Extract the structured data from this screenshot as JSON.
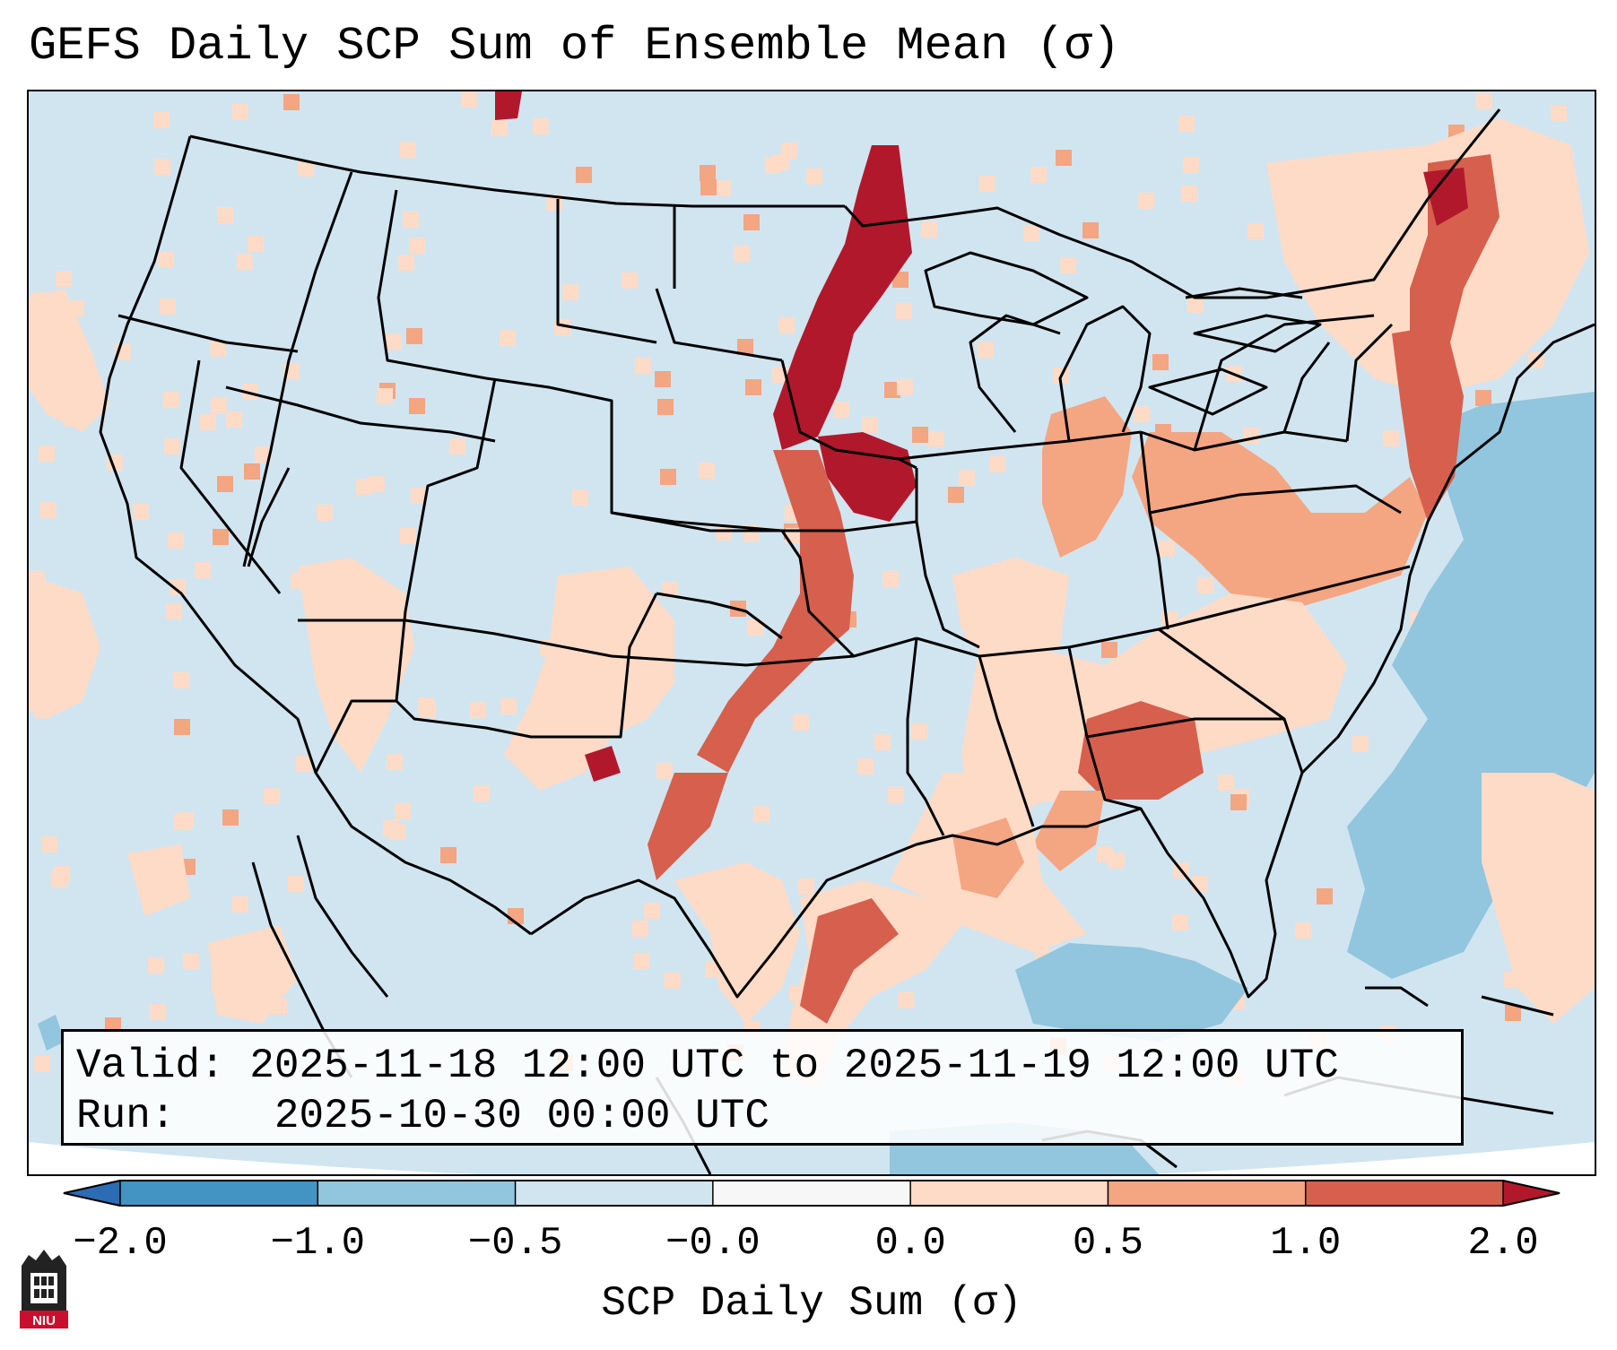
{
  "title": "GEFS Daily SCP Sum of Ensemble Mean (σ)",
  "info_box": {
    "valid_label": "Valid:",
    "valid_value": "2025-11-18 12:00 UTC to 2025-11-19 12:00 UTC",
    "run_label": "Run:",
    "run_value": "2025-10-30 00:00 UTC"
  },
  "colorbar": {
    "label": "SCP Daily Sum (σ)",
    "ticks": [
      "−2.0",
      "−1.0",
      "−0.5",
      "−0.0",
      "0.0",
      "0.5",
      "1.0",
      "2.0"
    ],
    "bins": [
      {
        "range": "< -2.0",
        "color": "#2b6cb4"
      },
      {
        "range": "-2.0 to -1.0",
        "color": "#4393c3"
      },
      {
        "range": "-1.0 to -0.5",
        "color": "#92c5de"
      },
      {
        "range": "-0.5 to -0.0",
        "color": "#d1e5f0"
      },
      {
        "range": "-0.0 to 0.0",
        "color": "#f7f7f7"
      },
      {
        "range": "0.0 to 0.5",
        "color": "#fddbc7"
      },
      {
        "range": "0.5 to 1.0",
        "color": "#f4a582"
      },
      {
        "range": "1.0 to 2.0",
        "color": "#d6604d"
      },
      {
        "range": "> 2.0",
        "color": "#b2182b"
      }
    ],
    "extend": "both"
  },
  "logo": {
    "text": "NIU",
    "colors": {
      "tower": "#222222",
      "band": "#c8102e"
    }
  },
  "colors": {
    "background_field": "#d1e5f0",
    "outside_domain": "#ffffff",
    "borders": "#000000"
  }
}
